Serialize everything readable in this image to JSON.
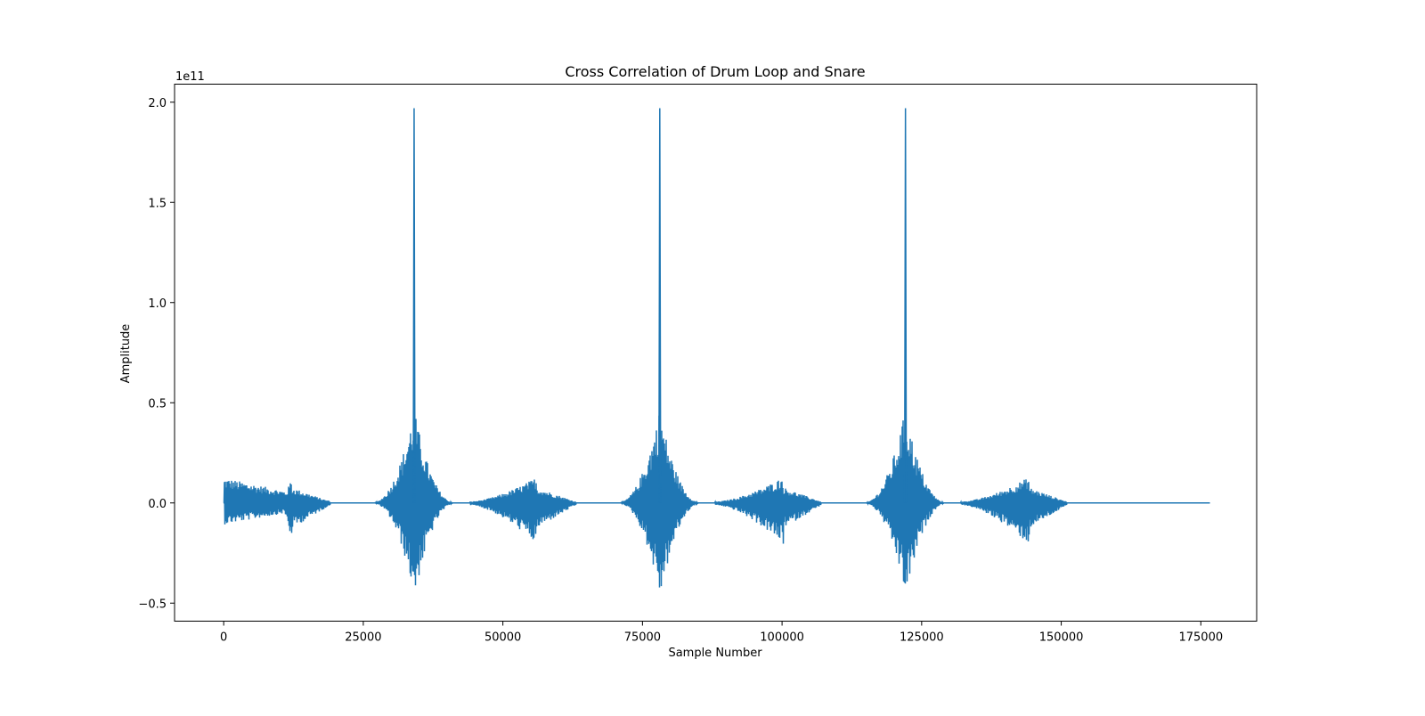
{
  "chart_data": {
    "type": "line",
    "title": "Cross Correlation of Drum Loop and Snare",
    "xlabel": "Sample Number",
    "ylabel": "Amplitude",
    "y_offset_text": "1e11",
    "y_scale": 100000000000,
    "xlim": [
      -8800,
      185000
    ],
    "ylim": [
      -59000000000.0,
      209000000000.0
    ],
    "xticks": [
      0,
      25000,
      50000,
      75000,
      100000,
      125000,
      150000,
      175000
    ],
    "xtick_labels": [
      "0",
      "25000",
      "50000",
      "75000",
      "100000",
      "125000",
      "150000",
      "175000"
    ],
    "yticks": [
      -0.5,
      0.0,
      0.5,
      1.0,
      1.5,
      2.0
    ],
    "ytick_labels": [
      "−0.5",
      "0.0",
      "0.5",
      "1.0",
      "1.5",
      "2.0"
    ],
    "grid": false,
    "legend": "none",
    "series": [
      {
        "color": "#1f77b4",
        "x_range": [
          0,
          176400
        ],
        "peaks": [
          {
            "x": 34100,
            "y": 197000000000.0
          },
          {
            "x": 78100,
            "y": 197000000000.0
          },
          {
            "x": 122100,
            "y": 197000000000.0
          }
        ],
        "burst_envelopes": [
          {
            "center": 0,
            "x_start": 0,
            "x_end": 19000,
            "max": 21000000000.0,
            "min": -18000000000.0
          },
          {
            "center": 12200,
            "x_start": 10000,
            "x_end": 19000,
            "max": 13000000000.0,
            "min": -21000000000.0
          },
          {
            "center": 34100,
            "x_start": 27000,
            "x_end": 41000,
            "max": 47000000000.0,
            "min": -47000000000.0
          },
          {
            "center": 56100,
            "x_start": 44000,
            "x_end": 63000,
            "max": 13000000000.0,
            "min": -21000000000.0
          },
          {
            "center": 78100,
            "x_start": 71000,
            "x_end": 85000,
            "max": 47000000000.0,
            "min": -47000000000.0
          },
          {
            "center": 100200,
            "x_start": 88000,
            "x_end": 107000,
            "max": 13000000000.0,
            "min": -21000000000.0
          },
          {
            "center": 122100,
            "x_start": 115000,
            "x_end": 129000,
            "max": 47000000000.0,
            "min": -47000000000.0
          },
          {
            "center": 144200,
            "x_start": 132000,
            "x_end": 151000,
            "max": 13000000000.0,
            "min": -21000000000.0
          }
        ]
      }
    ]
  }
}
